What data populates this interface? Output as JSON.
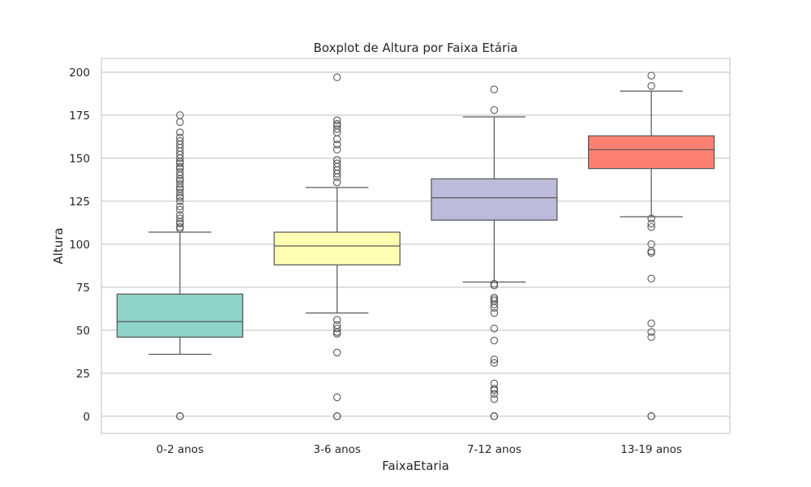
{
  "chart_data": {
    "type": "box",
    "title": "Boxplot de Altura por Faixa Etária",
    "xlabel": "FaixaEtaria",
    "ylabel": "Altura",
    "ylim": [
      -10,
      208
    ],
    "yticks": [
      0,
      25,
      50,
      75,
      100,
      125,
      150,
      175,
      200
    ],
    "grid": "horizontal",
    "categories": [
      "0-2 anos",
      "3-6 anos",
      "7-12 anos",
      "13-19 anos"
    ],
    "colors": [
      "#8dd3c7",
      "#ffffb3",
      "#bebada",
      "#fb8072"
    ],
    "line_color": "#595959",
    "boxes": [
      {
        "category": "0-2 anos",
        "whisker_low": 36,
        "q1": 46,
        "median": 55,
        "q3": 71,
        "whisker_high": 107,
        "outliers": [
          0,
          0,
          0,
          109,
          110,
          112,
          113,
          115,
          117,
          120,
          122,
          125,
          127,
          128,
          130,
          132,
          133,
          135,
          137,
          138,
          140,
          142,
          144,
          145,
          147,
          148,
          150,
          152,
          154,
          156,
          158,
          160,
          162,
          165,
          171,
          175
        ]
      },
      {
        "category": "3-6 anos",
        "whisker_low": 60,
        "q1": 88,
        "median": 99,
        "q3": 107,
        "whisker_high": 133,
        "outliers": [
          0,
          0,
          0,
          11,
          37,
          48,
          49,
          51,
          53,
          56,
          136,
          139,
          141,
          143,
          145,
          147,
          149,
          155,
          158,
          161,
          165,
          167,
          169,
          170,
          172,
          197
        ]
      },
      {
        "category": "7-12 anos",
        "whisker_low": 78,
        "q1": 114,
        "median": 127,
        "q3": 138,
        "whisker_high": 174,
        "outliers": [
          0,
          0,
          0,
          10,
          13,
          15,
          16,
          19,
          31,
          33,
          44,
          51,
          60,
          63,
          65,
          67,
          68,
          69,
          76,
          77,
          178,
          190
        ]
      },
      {
        "category": "13-19 anos",
        "whisker_low": 116,
        "q1": 144,
        "median": 155,
        "q3": 163,
        "whisker_high": 189,
        "outliers": [
          0,
          0,
          0,
          46,
          49,
          54,
          80,
          95,
          96,
          100,
          110,
          112,
          115,
          192,
          198
        ]
      }
    ]
  }
}
